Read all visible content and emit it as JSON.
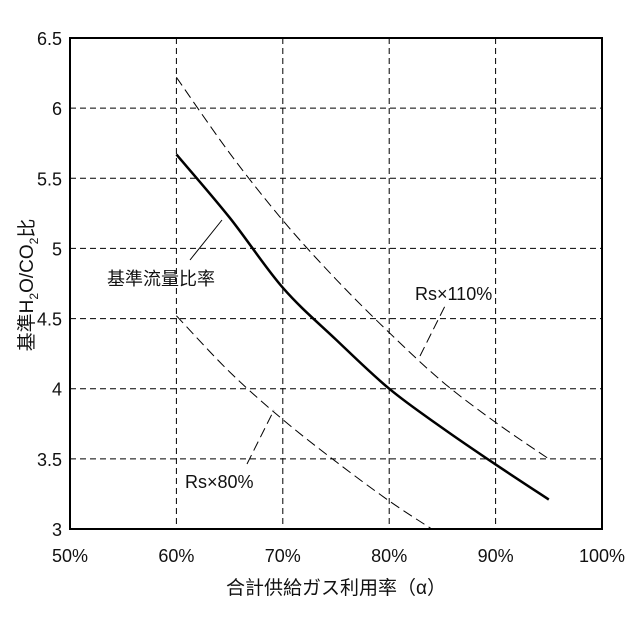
{
  "chart_data": {
    "type": "line",
    "title": "",
    "xlabel": "合計供給ガス利用率（α）",
    "ylabel_parts": [
      "基準H",
      "2",
      "O/CO",
      "2",
      "比"
    ],
    "ylabel": "基準H2O/CO2比",
    "xlim": [
      50,
      100
    ],
    "ylim": [
      3,
      6.5
    ],
    "x_ticks": [
      50,
      60,
      70,
      80,
      90,
      100
    ],
    "x_tick_labels": [
      "50%",
      "60%",
      "70%",
      "80%",
      "90%",
      "100%"
    ],
    "y_ticks": [
      3,
      3.5,
      4,
      4.5,
      5,
      5.5,
      6,
      6.5
    ],
    "y_tick_labels": [
      "3",
      "3.5",
      "4",
      "4.5",
      "5",
      "5.5",
      "6",
      "6.5"
    ],
    "grid": true,
    "series": [
      {
        "name": "基準流量比率",
        "style": "solid",
        "x": [
          60,
          65,
          70,
          75,
          80,
          85,
          90,
          95
        ],
        "y": [
          5.67,
          5.22,
          4.72,
          4.35,
          4.0,
          3.72,
          3.46,
          3.21
        ]
      },
      {
        "name": "Rs×110%",
        "style": "dashed",
        "x": [
          60,
          65,
          70,
          75,
          80,
          85,
          90,
          95
        ],
        "y": [
          6.22,
          5.68,
          5.2,
          4.78,
          4.4,
          4.05,
          3.76,
          3.5
        ]
      },
      {
        "name": "Rs×80%",
        "style": "dashed",
        "x": [
          60,
          65,
          70,
          75,
          80,
          84
        ],
        "y": [
          4.52,
          4.12,
          3.78,
          3.48,
          3.2,
          3.0
        ]
      }
    ],
    "annotations": [
      "基準流量比率",
      "Rs×110%",
      "Rs×80%"
    ]
  }
}
